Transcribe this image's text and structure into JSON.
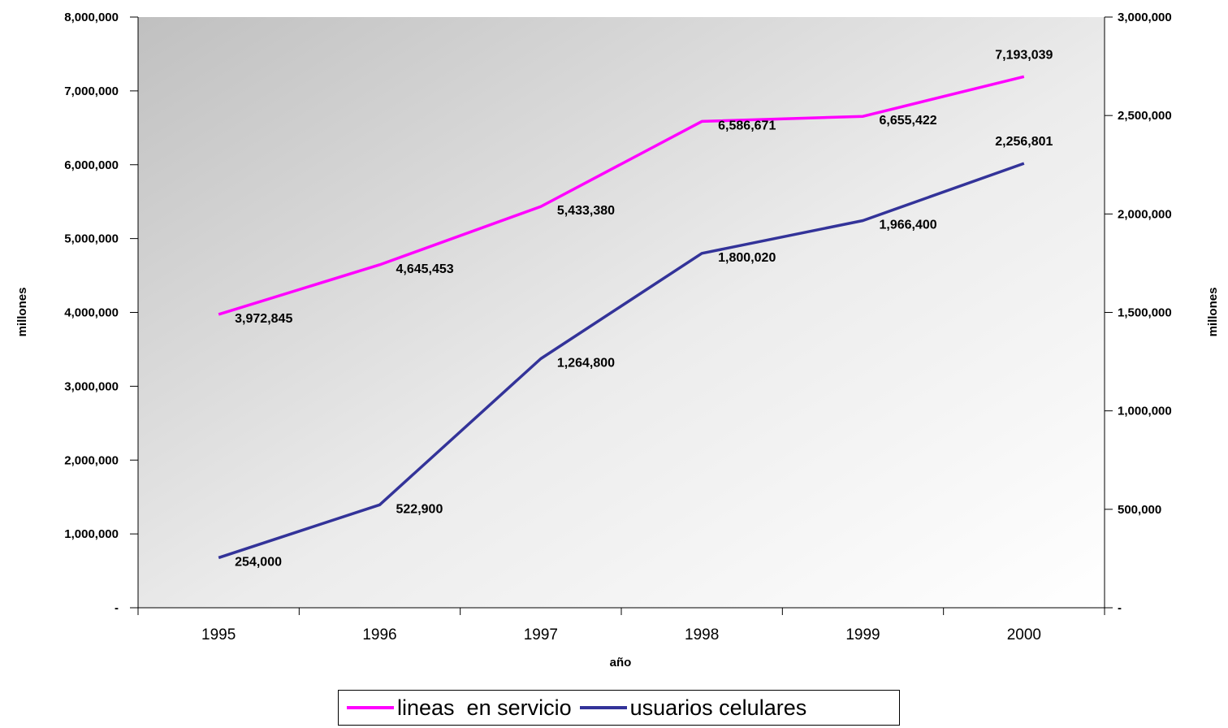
{
  "chart_data": {
    "type": "line",
    "categories": [
      "1995",
      "1996",
      "1997",
      "1998",
      "1999",
      "2000"
    ],
    "xlabel": "año",
    "ylabel_left": "millones",
    "ylabel_right": "millones",
    "ylim_left": [
      0,
      8000000
    ],
    "ylim_right": [
      0,
      3000000
    ],
    "yticks_left": [
      "-",
      "1,000,000",
      "2,000,000",
      "3,000,000",
      "4,000,000",
      "5,000,000",
      "6,000,000",
      "7,000,000",
      "8,000,000"
    ],
    "yticks_right": [
      "-",
      "500,000",
      "1,000,000",
      "1,500,000",
      "2,000,000",
      "2,500,000",
      "3,000,000"
    ],
    "grid": false,
    "legend_position": "bottom",
    "series": [
      {
        "name": "lineas  en servicio",
        "axis": "left",
        "color": "#ff00ff",
        "values": [
          3972845,
          4645453,
          5433380,
          6586671,
          6655422,
          7193039
        ],
        "labels": [
          "3,972,845",
          "4,645,453",
          "5,433,380",
          "6,586,671",
          "6,655,422",
          "7,193,039"
        ]
      },
      {
        "name": "usuarios celulares",
        "axis": "right",
        "color": "#333399",
        "values": [
          254000,
          522900,
          1264800,
          1800020,
          1966400,
          2256801
        ],
        "labels": [
          "254,000",
          "522,900",
          "1,264,800",
          "1,800,020",
          "1,966,400",
          "2,256,801"
        ]
      }
    ]
  }
}
